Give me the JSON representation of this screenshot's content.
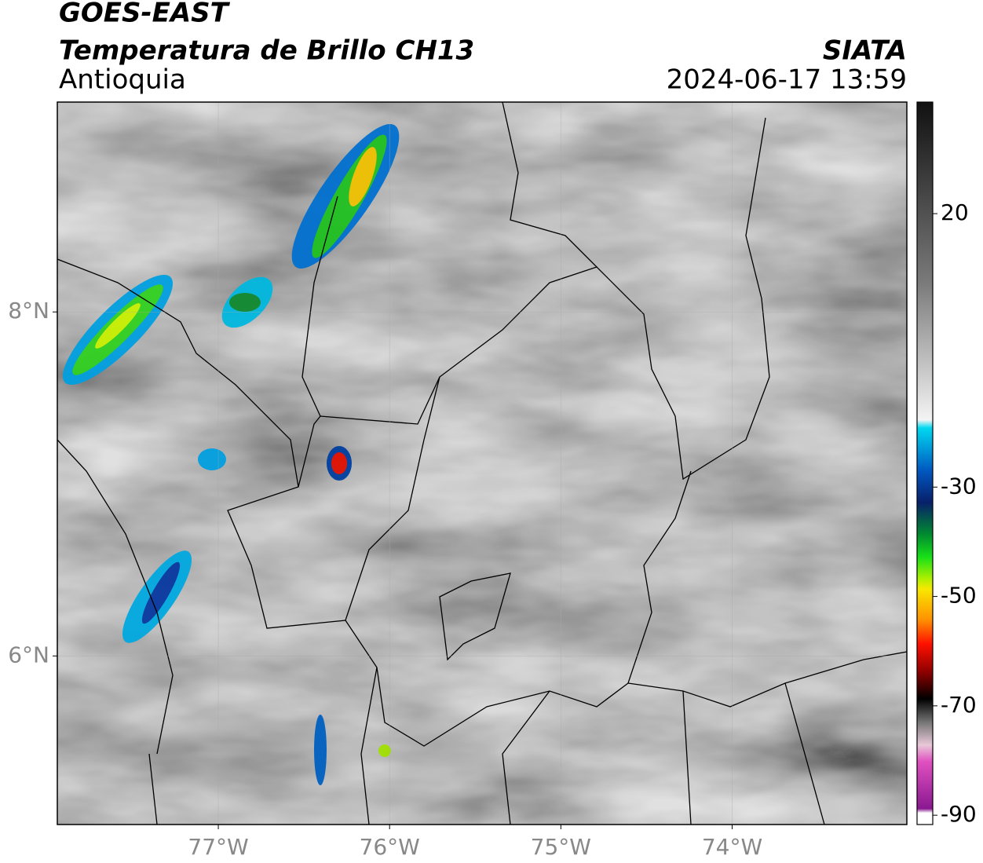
{
  "header": {
    "title": "GOES-EAST",
    "subtitle": "Temperatura de Brillo CH13",
    "region": "Antioquia",
    "source": "SIATA",
    "timestamp": "2024-06-17 13:59"
  },
  "map": {
    "xlim": [
      -77.94,
      -72.98
    ],
    "ylim": [
      5.02,
      9.22
    ],
    "xticks": [
      {
        "value": -77,
        "label": "77°W"
      },
      {
        "value": -76,
        "label": "76°W"
      },
      {
        "value": -75,
        "label": "75°W"
      },
      {
        "value": -74,
        "label": "74°W"
      }
    ],
    "yticks": [
      {
        "value": 8,
        "label": "8°N"
      },
      {
        "value": 6,
        "label": "6°N"
      }
    ]
  },
  "colorbar": {
    "lim": [
      -91.7,
      40.4
    ],
    "ticks": [
      20,
      -30,
      -50,
      -70,
      -90
    ]
  }
}
